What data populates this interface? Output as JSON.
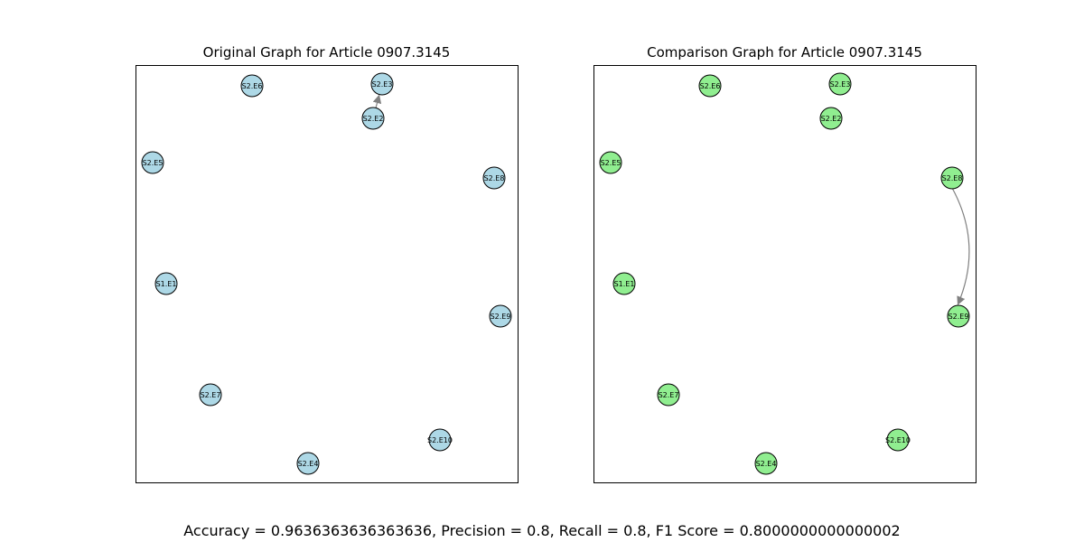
{
  "colors": {
    "left_node": "#add8e6",
    "right_node": "#90ee90",
    "edge": "#808080"
  },
  "panels": [
    {
      "title": "Original Graph for Article 0907.3145",
      "nodes": [
        "S2.E6",
        "S2.E3",
        "S2.E2",
        "S2.E5",
        "S2.E8",
        "S1.E1",
        "S2.E9",
        "S2.E7",
        "S2.E10",
        "S2.E4"
      ],
      "edges": [
        {
          "from": "S2.E2",
          "to": "S2.E3"
        }
      ]
    },
    {
      "title": "Comparison Graph for Article 0907.3145",
      "nodes": [
        "S2.E6",
        "S2.E3",
        "S2.E2",
        "S2.E5",
        "S2.E8",
        "S1.E1",
        "S2.E9",
        "S2.E7",
        "S2.E10",
        "S2.E4"
      ],
      "edges": [
        {
          "from": "S2.E8",
          "to": "S2.E9"
        }
      ]
    }
  ],
  "metrics_text": "Accuracy = 0.9636363636363636, Precision = 0.8, Recall = 0.8, F1 Score = 0.8000000000000002"
}
